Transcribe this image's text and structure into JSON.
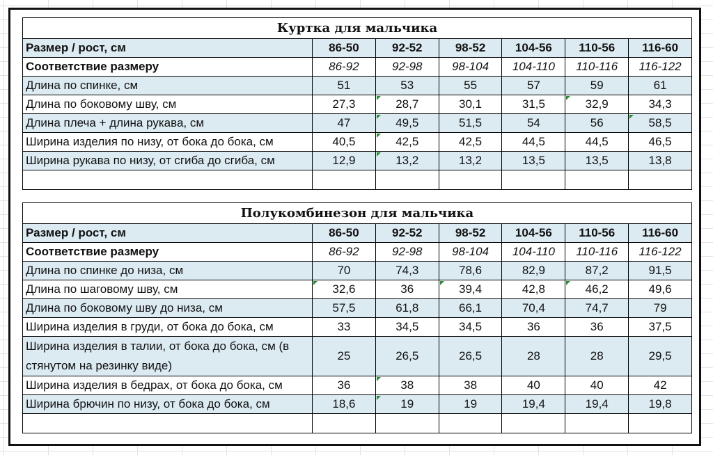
{
  "tables": [
    {
      "title": "Куртка для мальчика",
      "header": {
        "label": "Размер / рост, см",
        "values": [
          "86-50",
          "92-52",
          "98-52",
          "104-56",
          "110-56",
          "116-60"
        ]
      },
      "match": {
        "label": "Соответствие размеру",
        "values": [
          "86-92",
          "92-98",
          "98-104",
          "104-110",
          "110-116",
          "116-122"
        ]
      },
      "rows": [
        {
          "label": "Длина по спинке, см",
          "values": [
            "51",
            "53",
            "55",
            "57",
            "59",
            "61"
          ]
        },
        {
          "label": "Длина по боковому шву, см",
          "values": [
            "27,3",
            "28,7",
            "30,1",
            "31,5",
            "32,9",
            "34,3"
          ]
        },
        {
          "label": "Длина плеча + длина рукава, см",
          "values": [
            "47",
            "49,5",
            "51,5",
            "54",
            "56",
            "58,5"
          ]
        },
        {
          "label": "Ширина изделия по низу, от бока до бока, см",
          "values": [
            "40,5",
            "42,5",
            "42,5",
            "44,5",
            "44,5",
            "46,5"
          ]
        },
        {
          "label": "Ширина рукава по низу, от сгиба до сгиба, см",
          "values": [
            "12,9",
            "13,2",
            "13,2",
            "13,5",
            "13,5",
            "13,8"
          ]
        }
      ]
    },
    {
      "title": "Полукомбинезон для мальчика",
      "header": {
        "label": "Размер / рост, см",
        "values": [
          "86-50",
          "92-52",
          "98-52",
          "104-56",
          "110-56",
          "116-60"
        ]
      },
      "match": {
        "label": "Соответствие размеру",
        "values": [
          "86-92",
          "92-98",
          "98-104",
          "104-110",
          "110-116",
          "116-122"
        ]
      },
      "rows": [
        {
          "label": "Длина по спинке до низа, см",
          "values": [
            "70",
            "74,3",
            "78,6",
            "82,9",
            "87,2",
            "91,5"
          ]
        },
        {
          "label": "Длина по шаговому шву, см",
          "values": [
            "32,6",
            "36",
            "39,4",
            "42,8",
            "46,2",
            "49,6"
          ]
        },
        {
          "label": "Длина по боковому шву до низа, см",
          "values": [
            "57,5",
            "61,8",
            "66,1",
            "70,4",
            "74,7",
            "79"
          ]
        },
        {
          "label": "Ширина изделия в груди, от бока до бока, см",
          "values": [
            "33",
            "34,5",
            "34,5",
            "36",
            "36",
            "37,5"
          ]
        },
        {
          "label": "Ширина изделия в талии, от бока до бока, см (в стянутом на резинку виде)",
          "values": [
            "25",
            "26,5",
            "26,5",
            "28",
            "28",
            "29,5"
          ]
        },
        {
          "label": "Ширина изделия в бедрах, от бока до бока, см",
          "values": [
            "36",
            "38",
            "38",
            "40",
            "40",
            "42"
          ]
        },
        {
          "label": "Ширина брючин по низу, от бока до бока, см",
          "values": [
            "18,6",
            "19",
            "19",
            "19,4",
            "19,4",
            "19,8"
          ]
        }
      ]
    }
  ]
}
